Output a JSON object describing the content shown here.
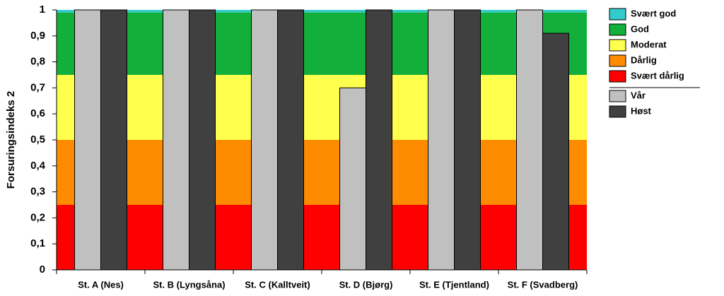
{
  "chart_data": {
    "type": "bar",
    "y_label": "Forsuringsindeks 2",
    "categories": [
      "St. A (Nes)",
      "St. B (Lyngsåna)",
      "St. C (Kalltveit)",
      "St. D (Bjørg)",
      "St. E (Tjentland)",
      "St. F (Svadberg)"
    ],
    "series": [
      {
        "name": "Vår",
        "color": "#c0c0c0",
        "values": [
          1,
          1,
          1,
          0.7,
          1,
          1
        ]
      },
      {
        "name": "Høst",
        "color": "#404040",
        "values": [
          1,
          1,
          1,
          1,
          1,
          0.91
        ]
      }
    ],
    "bands": [
      {
        "name": "Svært god",
        "color": "#33cccc",
        "from": 0.99,
        "to": 1
      },
      {
        "name": "God",
        "color": "#12b03a",
        "from": 0.75,
        "to": 0.99
      },
      {
        "name": "Moderat",
        "color": "#ffff4d",
        "from": 0.5,
        "to": 0.75
      },
      {
        "name": "Dårlig",
        "color": "#ff8c00",
        "from": 0.25,
        "to": 0.5
      },
      {
        "name": "Svært dårlig",
        "color": "#ff0000",
        "from": 0,
        "to": 0.25
      }
    ],
    "ylim": [
      0,
      1
    ],
    "yticks": [
      0,
      {
        "value": 0.1,
        "label": "0,1"
      },
      {
        "value": 0.2,
        "label": "0,2"
      },
      {
        "value": 0.3,
        "label": "0,3"
      },
      {
        "value": 0.4,
        "label": "0,4"
      },
      {
        "value": 0.5,
        "label": "0,5"
      },
      {
        "value": 0.6,
        "label": "0,6"
      },
      {
        "value": 0.7,
        "label": "0,7"
      },
      {
        "value": 0.8,
        "label": "0,8"
      },
      {
        "value": 0.9,
        "label": "0,9"
      },
      1
    ]
  }
}
